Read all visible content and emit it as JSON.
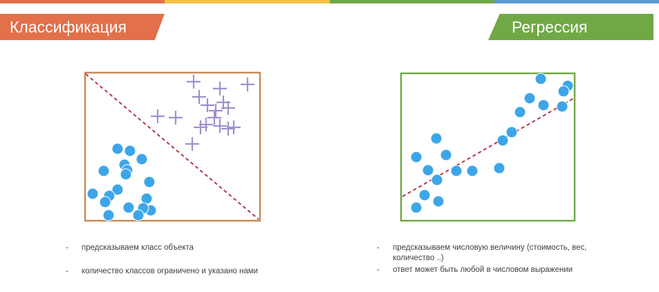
{
  "header": {
    "left_title": "Классификация",
    "right_title": "Регрессия",
    "bar_colors": [
      "#e2704a",
      "#f5c342",
      "#70a845",
      "#5b9bd5"
    ]
  },
  "classification": {
    "frame_color": "#c88b58",
    "boundary_color": "#b5344a",
    "cross_color": "#a08fd0",
    "dot_color": "#3da6e8",
    "bullets": [
      "предсказываем класс объекта",
      "количество классов ограничено и указано нами"
    ]
  },
  "regression": {
    "frame_color": "#70a845",
    "trend_color": "#b5344a",
    "dot_color": "#3da6e8",
    "bullets": [
      "предсказываем числовую величину (стоимость, вес, количество ..)",
      "ответ может быть любой в числовом выражении"
    ]
  },
  "bullet_marker": "-"
}
